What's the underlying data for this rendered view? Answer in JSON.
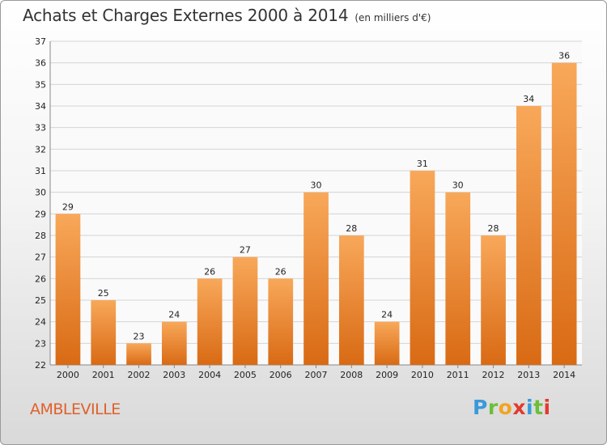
{
  "header": {
    "title": "Achats et Charges Externes 2000 à 2014",
    "unit": "(en milliers d'€)"
  },
  "location": {
    "name": "AMBLEVILLE"
  },
  "logo": {
    "letters": [
      "P",
      "r",
      "o",
      "x",
      "i",
      "t",
      "i"
    ],
    "colors": [
      "#3a9ad9",
      "#6cbf3a",
      "#f2a324",
      "#e23a2e",
      "#3a9ad9",
      "#6cbf3a",
      "#e23a2e"
    ]
  },
  "colors": {
    "bar_top": "#f8a85a",
    "bar_bottom": "#d96a14",
    "grid": "#d4d4d4",
    "plot_bg": "#fafafa",
    "title_text": "#333333",
    "place_text": "#e0602a"
  },
  "chart_data": {
    "type": "bar",
    "title": "Achats et Charges Externes 2000 à 2014",
    "subtitle": "(en milliers d'€)",
    "xlabel": "",
    "ylabel": "",
    "categories": [
      "2000",
      "2001",
      "2002",
      "2003",
      "2004",
      "2005",
      "2006",
      "2007",
      "2008",
      "2009",
      "2010",
      "2011",
      "2012",
      "2013",
      "2014"
    ],
    "values": [
      29,
      25,
      23,
      24,
      26,
      27,
      26,
      30,
      28,
      24,
      31,
      30,
      28,
      34,
      36
    ],
    "ylim": [
      22,
      37
    ],
    "yticks": [
      22,
      23,
      24,
      25,
      26,
      27,
      28,
      29,
      30,
      31,
      32,
      33,
      34,
      35,
      36,
      37
    ],
    "grid": true,
    "legend": "none"
  }
}
